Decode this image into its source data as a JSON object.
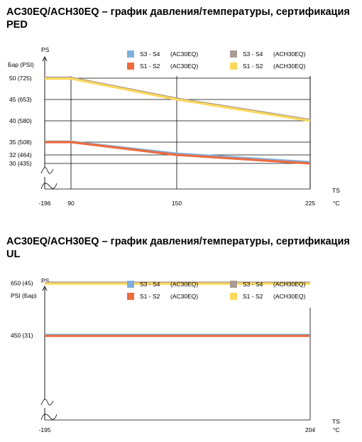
{
  "colors": {
    "S3S4_AC30EQ": "#7eb0de",
    "S1S2_AC30EQ": "#ec6c40",
    "S3S4_ACH30EQ": "#a89b94",
    "S1S2_ACH30EQ": "#fbd85c",
    "grid": "#000000"
  },
  "legend_items": [
    {
      "key": "S3S4_AC30EQ",
      "range": "S3 - S4",
      "model": "(AC30EQ)"
    },
    {
      "key": "S3S4_ACH30EQ",
      "range": "S3 - S4",
      "model": "(ACH30EQ)"
    },
    {
      "key": "S1S2_AC30EQ",
      "range": "S1 - S2",
      "model": "(AC30EQ)"
    },
    {
      "key": "S1S2_ACH30EQ",
      "range": "S1 - S2",
      "model": "(ACH30EQ)"
    }
  ],
  "chart_data": [
    {
      "type": "line",
      "title": "AC30EQ/ACH30EQ – график давления/температуры, сертификация PED",
      "ylabel": "PS",
      "yunit": "Бар (PSI)",
      "xlabel": "TS",
      "xunit": "°C",
      "x_ticks": [
        "-196",
        "90",
        "150",
        "225"
      ],
      "x_tick_values": [
        -196,
        90,
        150,
        225
      ],
      "y_ticks": [
        {
          "value": 30,
          "label": "30  (435)"
        },
        {
          "value": 32,
          "label": "32  (464)"
        },
        {
          "value": 35,
          "label": "35  (508)"
        },
        {
          "value": 40,
          "label": "40  (580)"
        },
        {
          "value": 45,
          "label": "45  (653)"
        },
        {
          "value": 50,
          "label": "50  (725)"
        }
      ],
      "legend_position": "top-right",
      "grid": true,
      "series": [
        {
          "key": "S3S4_AC30EQ",
          "x": [
            -196,
            90,
            150,
            225
          ],
          "y": [
            35.1,
            35.1,
            32.3,
            30.3
          ]
        },
        {
          "key": "S1S2_AC30EQ",
          "x": [
            -196,
            90,
            150,
            225
          ],
          "y": [
            35,
            35,
            32,
            30
          ]
        },
        {
          "key": "S3S4_ACH30EQ",
          "x": [
            -196,
            90,
            150,
            225
          ],
          "y": [
            50.1,
            50.1,
            45.2,
            40.2
          ]
        },
        {
          "key": "S1S2_ACH30EQ",
          "x": [
            -196,
            90,
            150,
            225
          ],
          "y": [
            49.9,
            49.9,
            45,
            40
          ]
        }
      ]
    },
    {
      "type": "line",
      "title": "AC30EQ/ACH30EQ – график давления/температуры, сертификация UL",
      "ylabel": "PS",
      "yunit": "PSI (Бар)",
      "xlabel": "TS",
      "xunit": "°C",
      "x_ticks": [
        "-195",
        "204"
      ],
      "x_tick_values": [
        -195,
        204
      ],
      "y_ticks": [
        {
          "value": 450,
          "label": "450  (31)"
        },
        {
          "value": 650,
          "label": "650  (45)"
        }
      ],
      "legend_position": "top-right",
      "grid": false,
      "series": [
        {
          "key": "S3S4_AC30EQ",
          "x": [
            -195,
            204
          ],
          "y": [
            452,
            452
          ]
        },
        {
          "key": "S1S2_AC30EQ",
          "x": [
            -195,
            204
          ],
          "y": [
            448,
            448
          ]
        },
        {
          "key": "S3S4_ACH30EQ",
          "x": [
            -195,
            204
          ],
          "y": [
            652,
            652
          ]
        },
        {
          "key": "S1S2_ACH30EQ",
          "x": [
            -195,
            204
          ],
          "y": [
            648,
            648
          ]
        }
      ]
    }
  ]
}
